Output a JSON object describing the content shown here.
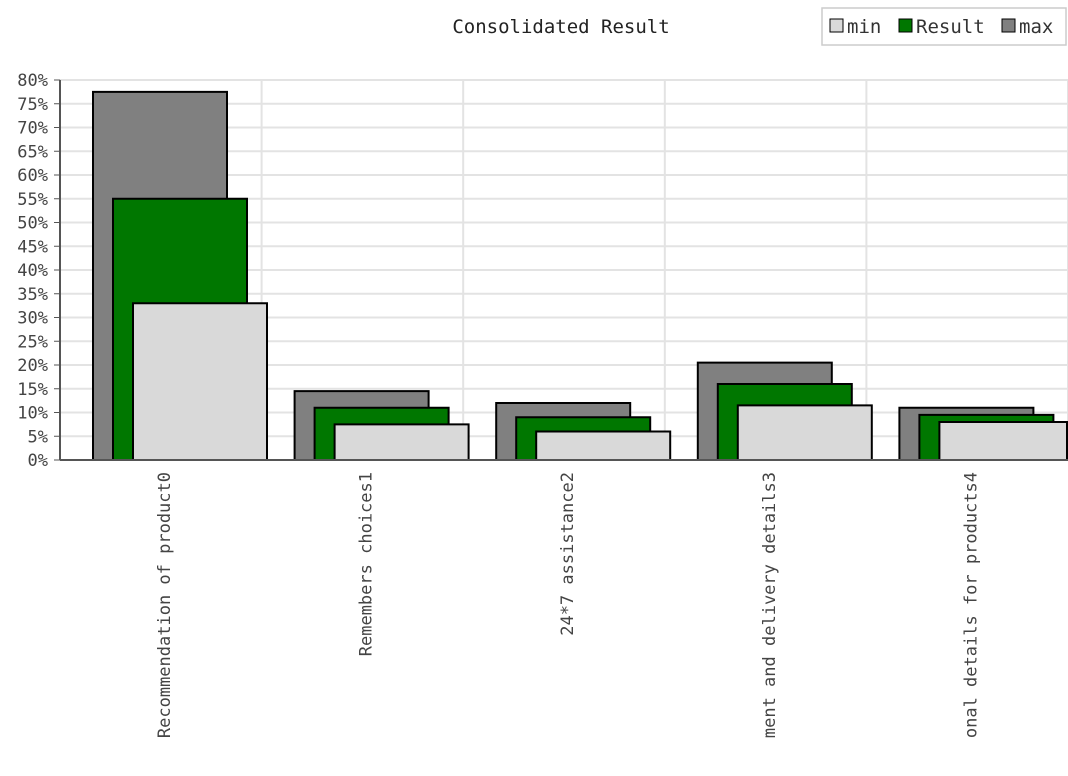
{
  "chart_data": {
    "type": "bar",
    "title": "Consolidated Result",
    "xlabel": "",
    "ylabel": "",
    "ylim": [
      0,
      80
    ],
    "ytick_step": 5,
    "ytick_suffix": "%",
    "grid": true,
    "legend_position": "top-right",
    "categories": [
      "Recommendation of product0",
      "Remembers choices1",
      "24*7 assistance2",
      "ment and delivery details3",
      "onal details for products4"
    ],
    "series": [
      {
        "name": "min",
        "color": "#d9d9d9",
        "values": [
          33,
          7.5,
          6,
          11.5,
          8
        ]
      },
      {
        "name": "Result",
        "color": "#007700",
        "values": [
          55,
          11,
          9,
          16,
          9.5
        ]
      },
      {
        "name": "max",
        "color": "#808080",
        "values": [
          77.5,
          14.5,
          12,
          20.5,
          11
        ]
      }
    ]
  }
}
